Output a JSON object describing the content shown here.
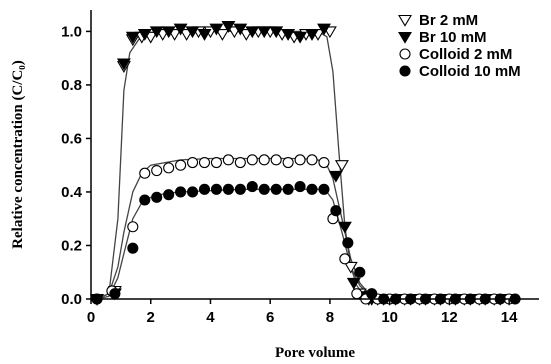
{
  "chart_data": {
    "type": "scatter",
    "xlabel": "Pore volume",
    "ylabel": "Relative concentration (C/C₀)",
    "xlim": [
      0,
      15
    ],
    "ylim": [
      0,
      1.08
    ],
    "xticks": [
      0,
      2,
      4,
      6,
      8,
      10,
      12,
      14
    ],
    "yticks": [
      0.0,
      0.2,
      0.4,
      0.6,
      0.8,
      1.0
    ],
    "xtick_labels": [
      "0",
      "2",
      "4",
      "6",
      "8",
      "10",
      "12",
      "14"
    ],
    "ytick_labels": [
      "0.0",
      "0.2",
      "0.4",
      "0.6",
      "0.8",
      "1.0"
    ],
    "grid": false,
    "legend_position": "top-right",
    "series": [
      {
        "name": "Br 2 mM",
        "marker": "triangle-down-open",
        "x": [
          0.2,
          0.8,
          1.1,
          1.4,
          1.7,
          2.0,
          2.4,
          2.8,
          3.2,
          3.6,
          4.0,
          4.4,
          4.8,
          5.2,
          5.6,
          6.0,
          6.4,
          6.8,
          7.2,
          7.6,
          8.0,
          8.4,
          8.7,
          9.0,
          9.3,
          9.6,
          10.0,
          10.5,
          11.0,
          11.5,
          12.0,
          12.5,
          13.0,
          13.5,
          14.0
        ],
        "y": [
          0.0,
          0.03,
          0.87,
          0.97,
          0.98,
          0.98,
          0.99,
          0.99,
          0.99,
          1.0,
          1.0,
          0.99,
          1.0,
          0.99,
          1.0,
          1.0,
          0.99,
          0.98,
          0.99,
          0.99,
          1.0,
          0.5,
          0.12,
          0.02,
          0.0,
          0.0,
          0.0,
          0.0,
          0.0,
          0.0,
          0.0,
          0.0,
          0.0,
          0.0,
          0.0
        ]
      },
      {
        "name": "Br 10 mM",
        "marker": "triangle-down-filled",
        "x": [
          0.2,
          0.8,
          1.1,
          1.4,
          1.8,
          2.2,
          2.6,
          3.0,
          3.4,
          3.8,
          4.2,
          4.6,
          5.0,
          5.4,
          5.8,
          6.2,
          6.6,
          7.0,
          7.4,
          7.8,
          8.2,
          8.5,
          8.8,
          9.1,
          9.4,
          9.8,
          10.2,
          10.7,
          11.2,
          11.7,
          12.2,
          12.7,
          13.2,
          13.7
        ],
        "y": [
          0.0,
          0.02,
          0.88,
          0.98,
          0.99,
          1.0,
          1.0,
          1.01,
          1.0,
          0.99,
          1.01,
          1.02,
          1.01,
          1.0,
          1.0,
          1.0,
          0.99,
          0.98,
          0.99,
          1.01,
          0.46,
          0.27,
          0.06,
          0.01,
          0.0,
          0.0,
          0.0,
          0.0,
          0.0,
          0.0,
          0.0,
          0.0,
          0.0,
          0.0
        ]
      },
      {
        "name": "Colloid 2 mM",
        "marker": "circle-open",
        "x": [
          0.2,
          0.7,
          1.4,
          1.8,
          2.2,
          2.6,
          3.0,
          3.4,
          3.8,
          4.2,
          4.6,
          5.0,
          5.4,
          5.8,
          6.2,
          6.6,
          7.0,
          7.4,
          7.8,
          8.1,
          8.5,
          8.9,
          9.2,
          9.6,
          10.0,
          10.5,
          11.0,
          11.5,
          12.0,
          12.5,
          13.0,
          13.5,
          14.0
        ],
        "y": [
          0.0,
          0.03,
          0.27,
          0.47,
          0.48,
          0.49,
          0.5,
          0.51,
          0.51,
          0.51,
          0.52,
          0.51,
          0.52,
          0.52,
          0.52,
          0.51,
          0.52,
          0.52,
          0.51,
          0.3,
          0.15,
          0.02,
          0.0,
          0.0,
          0.0,
          0.0,
          0.0,
          0.0,
          0.0,
          0.0,
          0.0,
          0.0,
          0.0
        ]
      },
      {
        "name": "Colloid 10 mM",
        "marker": "circle-filled",
        "x": [
          0.2,
          0.8,
          1.4,
          1.8,
          2.2,
          2.6,
          3.0,
          3.4,
          3.8,
          4.2,
          4.6,
          5.0,
          5.4,
          5.8,
          6.2,
          6.6,
          7.0,
          7.4,
          7.8,
          8.2,
          8.6,
          9.0,
          9.4,
          9.8,
          10.2,
          10.7,
          11.2,
          11.7,
          12.2,
          12.7,
          13.2,
          13.7,
          14.2
        ],
        "y": [
          0.0,
          0.02,
          0.19,
          0.37,
          0.38,
          0.39,
          0.4,
          0.4,
          0.41,
          0.41,
          0.41,
          0.41,
          0.42,
          0.41,
          0.41,
          0.41,
          0.42,
          0.41,
          0.41,
          0.33,
          0.21,
          0.1,
          0.02,
          0.0,
          0.0,
          0.0,
          0.0,
          0.0,
          0.0,
          0.0,
          0.0,
          0.0,
          0.0
        ]
      }
    ],
    "fit_curves": [
      {
        "x": [
          0.2,
          0.6,
          0.9,
          1.1,
          1.3,
          1.6,
          2.0,
          3.0,
          5.0,
          7.0,
          7.6,
          7.9,
          8.1,
          8.3,
          8.5,
          8.7,
          8.9,
          9.1,
          9.4,
          10.0,
          14.0
        ],
        "y": [
          0.0,
          0.02,
          0.3,
          0.78,
          0.92,
          0.97,
          0.99,
          1.0,
          1.0,
          1.0,
          1.0,
          0.98,
          0.85,
          0.55,
          0.27,
          0.12,
          0.05,
          0.02,
          0.005,
          0.0,
          0.0
        ]
      },
      {
        "x": [
          0.2,
          0.6,
          0.9,
          1.1,
          1.4,
          1.7,
          2.0,
          2.5,
          3.0,
          4.0,
          5.0,
          6.0,
          7.0,
          7.6,
          7.9,
          8.1,
          8.4,
          8.7,
          9.0,
          9.3,
          9.6,
          10.0,
          14.0
        ],
        "y": [
          0.0,
          0.02,
          0.12,
          0.25,
          0.4,
          0.47,
          0.5,
          0.51,
          0.52,
          0.525,
          0.525,
          0.525,
          0.525,
          0.52,
          0.5,
          0.45,
          0.3,
          0.15,
          0.06,
          0.02,
          0.005,
          0.0,
          0.0
        ]
      },
      {
        "x": [
          0.2,
          0.6,
          0.9,
          1.1,
          1.4,
          1.7,
          2.0,
          2.5,
          3.0,
          4.0,
          5.0,
          6.0,
          7.0,
          7.6,
          7.9,
          8.1,
          8.4,
          8.7,
          9.0,
          9.3,
          9.6,
          10.0,
          14.0
        ],
        "y": [
          0.0,
          0.01,
          0.08,
          0.17,
          0.3,
          0.36,
          0.38,
          0.395,
          0.4,
          0.405,
          0.41,
          0.41,
          0.41,
          0.41,
          0.4,
          0.37,
          0.25,
          0.12,
          0.05,
          0.015,
          0.004,
          0.0,
          0.0
        ]
      }
    ]
  },
  "style": {
    "ink": "#000000",
    "curve": "#444444",
    "background": "#ffffff"
  }
}
